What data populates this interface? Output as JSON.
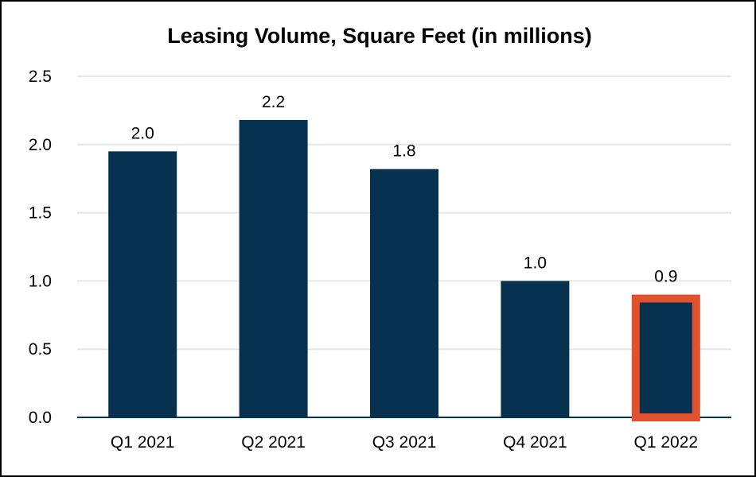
{
  "chart_data": {
    "type": "bar",
    "title": "Leasing Volume, Square Feet (in millions)",
    "categories": [
      "Q1 2021",
      "Q2 2021",
      "Q3 2021",
      "Q4 2021",
      "Q1 2022"
    ],
    "values": [
      1.95,
      2.18,
      1.82,
      1.0,
      0.9
    ],
    "data_labels": [
      "2.0",
      "2.2",
      "1.8",
      "1.0",
      "0.9"
    ],
    "highlighted_category": "Q1 2022",
    "ylim": [
      0,
      2.5
    ],
    "yticks": [
      "0.0",
      "0.5",
      "1.0",
      "1.5",
      "2.0",
      "2.5"
    ],
    "xlabel": "",
    "ylabel": "",
    "grid": true,
    "bar_color": "#06324F",
    "highlight_color": "#E0512E",
    "grid_color": "#E6E6E6"
  }
}
